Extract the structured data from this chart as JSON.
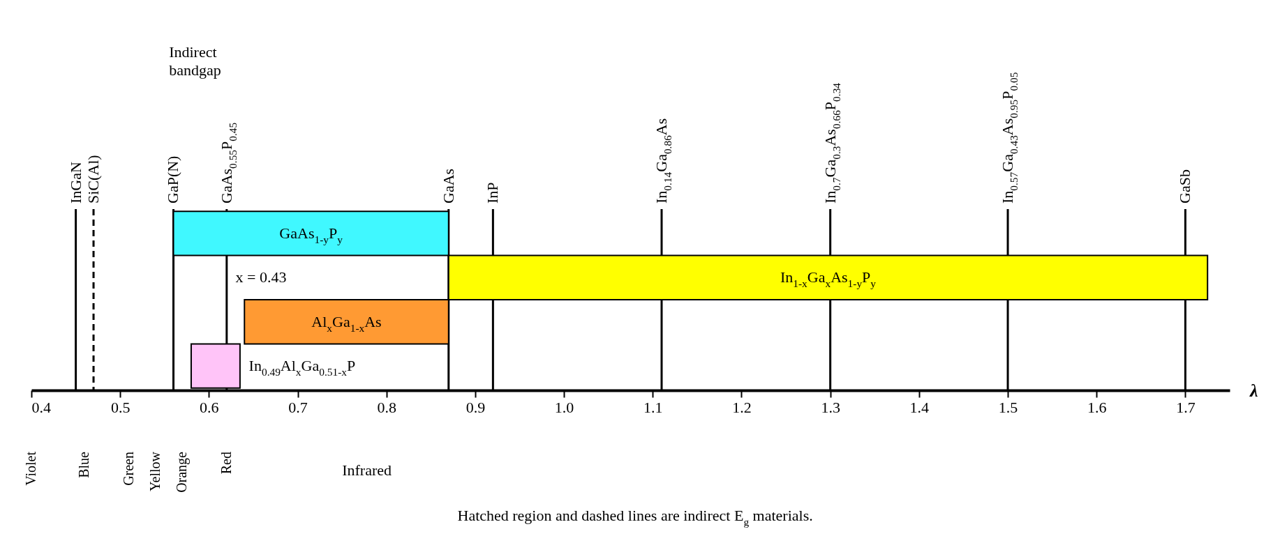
{
  "chart_data": {
    "type": "bar",
    "orientation": "horizontal",
    "xlabel": "λ",
    "categories": [
      "GaAs$_{1-y}$P$_{y}$",
      "In$_{1-x}$Ga$_{x}$As$_{1-y}$P$_{y}$",
      "Al$_{x}$Ga$_{1-x}$As",
      "In$_{0.49}$Al$_{x}$Ga$_{0.51-x}$P"
    ],
    "base": [
      0.56,
      0.87,
      0.64,
      0.58
    ],
    "values": [
      0.31,
      0.855,
      0.23,
      0.055
    ],
    "colors": [
      "#40f8ff",
      "#ffff00",
      "#ff9a33",
      "#ffc4f8"
    ],
    "xlim": [
      0.4,
      1.75
    ],
    "xticks": [
      0.4,
      0.5,
      0.6,
      0.7,
      0.8,
      0.9,
      {
        "value": 1.0,
        "label": "1.0"
      },
      1.1,
      1.2,
      1.3,
      1.4,
      1.5,
      1.6,
      1.7
    ],
    "ref_lines": [
      {
        "axis": "x",
        "value": 0.45,
        "label": "InGaN"
      },
      {
        "axis": "x",
        "value": 0.47,
        "label": "SiC(Al)",
        "line_style": "dashed"
      },
      {
        "axis": "x",
        "value": 0.56,
        "label": "GaP(N)"
      },
      {
        "axis": "x",
        "value": 0.62,
        "label": "GaAs$_{0.55}$P$_{0.45}$"
      },
      {
        "axis": "x",
        "value": 0.87,
        "label": "GaAs"
      },
      {
        "axis": "x",
        "value": 0.92,
        "label": "InP"
      },
      {
        "axis": "x",
        "value": 1.11,
        "label": "In$_{0.14}$Ga$_{0.86}$As"
      },
      {
        "axis": "x",
        "value": 1.3,
        "label": "In$_{0.7}$Ga$_{0.3}$As$_{0.66}$P$_{0.34}$"
      },
      {
        "axis": "x",
        "value": 1.5,
        "label": "In$_{0.57}$Ga$_{0.43}$As$_{0.95}$P$_{0.05}$"
      },
      {
        "axis": "x",
        "value": 1.7,
        "label": "GaSb"
      }
    ],
    "annotations": [
      "Indirect bandgap",
      "x = 0.43",
      "Infrared",
      "Hatched region and dashed lines are indirect E$_{g}$ materials.",
      "Violet",
      "Blue",
      "Green",
      "Yellow",
      "Orange",
      "Red"
    ]
  }
}
